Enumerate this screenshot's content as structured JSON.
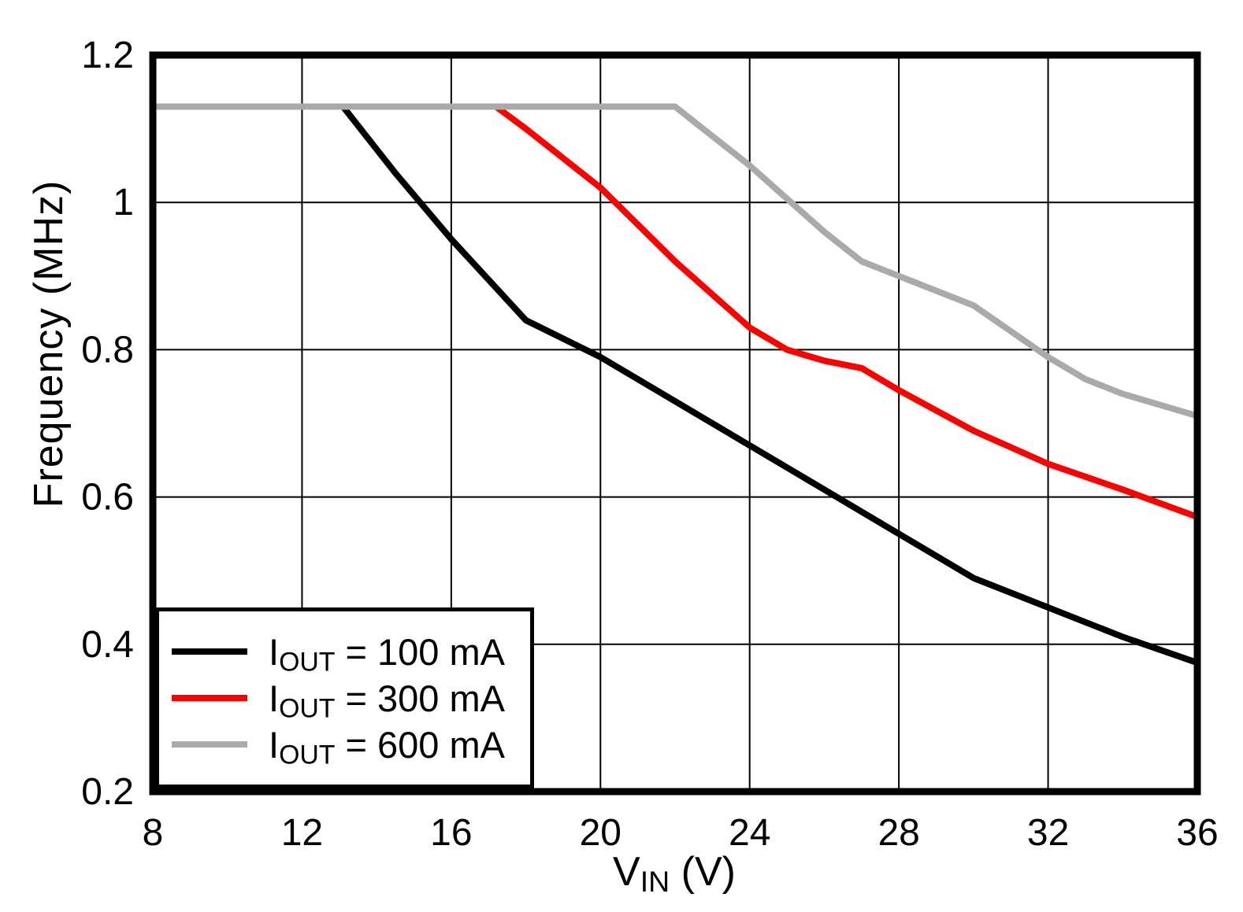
{
  "chart_data": {
    "type": "line",
    "title": "",
    "xlabel": {
      "base": "V",
      "sub": "IN",
      "rest": " (V)"
    },
    "ylabel": "Frequency (MHz)",
    "xlim": [
      8,
      36
    ],
    "ylim": [
      0.2,
      1.2
    ],
    "x_ticks": [
      8,
      12,
      16,
      20,
      24,
      28,
      32,
      36
    ],
    "x_tick_labels": [
      "8",
      "12",
      "16",
      "20",
      "24",
      "28",
      "32",
      "36"
    ],
    "y_ticks": [
      0.2,
      0.4,
      0.6,
      0.8,
      1,
      1.2
    ],
    "y_tick_labels": [
      "0.2",
      "0.4",
      "0.6",
      "0.8",
      "1",
      "1.2"
    ],
    "grid": true,
    "legend_position": "bottom-left",
    "colors": {
      "axis": "#000000",
      "grid": "#000000",
      "background": "#FFFFFF",
      "series_black": "#000000",
      "series_red": "#FF0000",
      "series_gray": "#AAAAAA"
    },
    "series": [
      {
        "id": "iout-100ma",
        "label": {
          "base": "I",
          "sub": "OUT",
          "rest": " = 100 mA"
        },
        "color": "#000000",
        "points": [
          [
            8,
            1.13
          ],
          [
            13.1,
            1.13
          ],
          [
            14.5,
            1.04
          ],
          [
            16,
            0.95
          ],
          [
            18,
            0.84
          ],
          [
            20,
            0.79
          ],
          [
            22,
            0.73
          ],
          [
            24,
            0.67
          ],
          [
            26,
            0.61
          ],
          [
            28,
            0.55
          ],
          [
            30,
            0.49
          ],
          [
            32,
            0.45
          ],
          [
            34,
            0.41
          ],
          [
            36,
            0.375
          ]
        ]
      },
      {
        "id": "iout-300ma",
        "label": {
          "base": "I",
          "sub": "OUT",
          "rest": " = 300 mA"
        },
        "color": "#FF0000",
        "points": [
          [
            8,
            1.13
          ],
          [
            17.2,
            1.13
          ],
          [
            18,
            1.1
          ],
          [
            20,
            1.02
          ],
          [
            22,
            0.92
          ],
          [
            24,
            0.83
          ],
          [
            25,
            0.8
          ],
          [
            26,
            0.785
          ],
          [
            27,
            0.775
          ],
          [
            28,
            0.745
          ],
          [
            30,
            0.69
          ],
          [
            32,
            0.645
          ],
          [
            34,
            0.61
          ],
          [
            36,
            0.573
          ]
        ]
      },
      {
        "id": "iout-600ma",
        "label": {
          "base": "I",
          "sub": "OUT",
          "rest": " = 600 mA"
        },
        "color": "#AAAAAA",
        "points": [
          [
            8,
            1.13
          ],
          [
            22,
            1.13
          ],
          [
            24,
            1.05
          ],
          [
            26,
            0.96
          ],
          [
            27,
            0.92
          ],
          [
            28,
            0.9
          ],
          [
            30,
            0.86
          ],
          [
            32,
            0.79
          ],
          [
            33,
            0.76
          ],
          [
            34,
            0.74
          ],
          [
            36,
            0.71
          ]
        ]
      }
    ]
  }
}
